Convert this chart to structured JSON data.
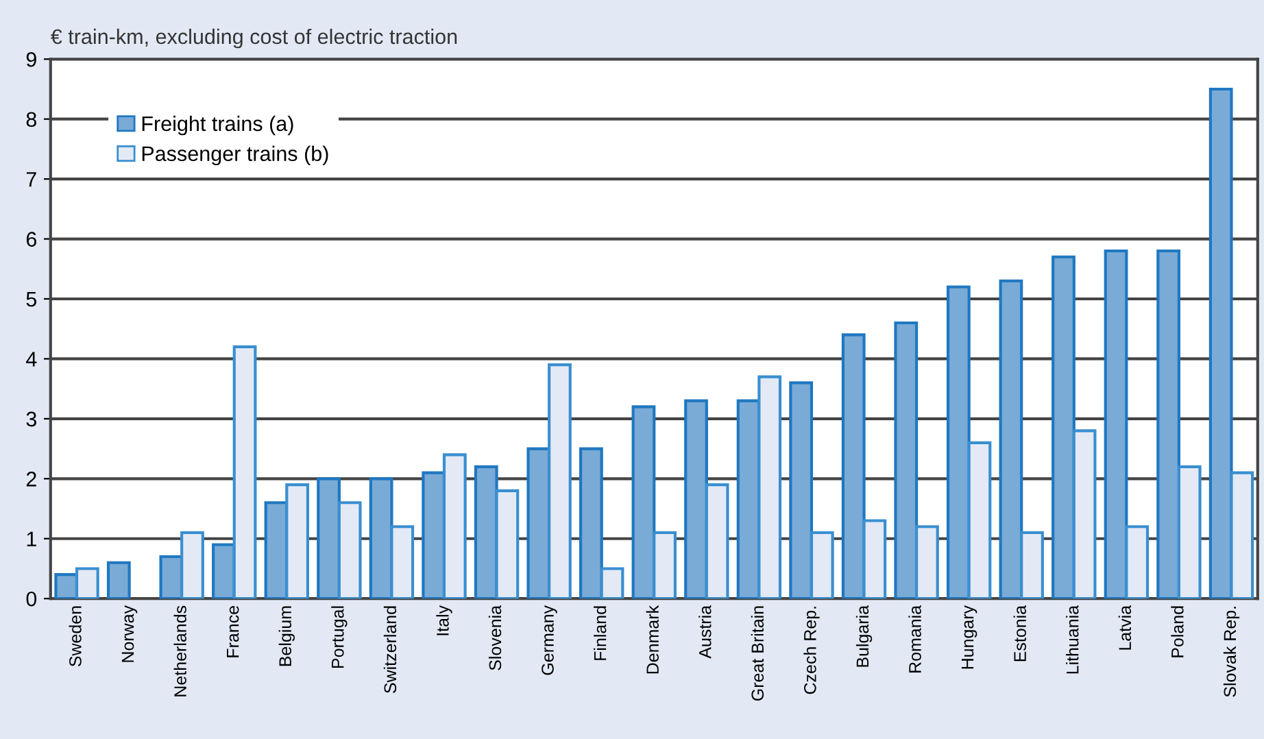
{
  "chart_data": {
    "type": "bar",
    "title": "€ train-km, excluding cost of electric traction",
    "categories": [
      "Sweden",
      "Norway",
      "Netherlands",
      "France",
      "Belgium",
      "Portugal",
      "Switzerland",
      "Italy",
      "Slovenia",
      "Germany",
      "Finland",
      "Denmark",
      "Austria",
      "Great Britain",
      "Czech Rep.",
      "Bulgaria",
      "Romania",
      "Hungary",
      "Estonia",
      "Lithuania",
      "Latvia",
      "Poland",
      "Slovak Rep."
    ],
    "series": [
      {
        "name": "Freight trains (a)",
        "color": "#7aaad6",
        "values": [
          0.4,
          0.6,
          0.7,
          0.9,
          1.6,
          2.0,
          2.0,
          2.1,
          2.2,
          2.5,
          2.5,
          3.2,
          3.3,
          3.3,
          3.6,
          4.4,
          4.6,
          5.2,
          5.3,
          5.7,
          5.8,
          5.8,
          8.5
        ]
      },
      {
        "name": "Passenger trains (b)",
        "color": "#e3eaf6",
        "values": [
          0.5,
          null,
          1.1,
          4.2,
          1.9,
          1.6,
          1.2,
          2.4,
          1.8,
          3.9,
          0.5,
          1.1,
          1.9,
          3.7,
          1.1,
          1.3,
          1.2,
          2.6,
          1.1,
          2.8,
          1.2,
          2.2,
          2.1
        ]
      }
    ],
    "ylim": [
      0,
      9
    ],
    "yticks": [
      0,
      1,
      2,
      3,
      4,
      5,
      6,
      7,
      8,
      9
    ],
    "grid": "y",
    "legend": "top left"
  }
}
